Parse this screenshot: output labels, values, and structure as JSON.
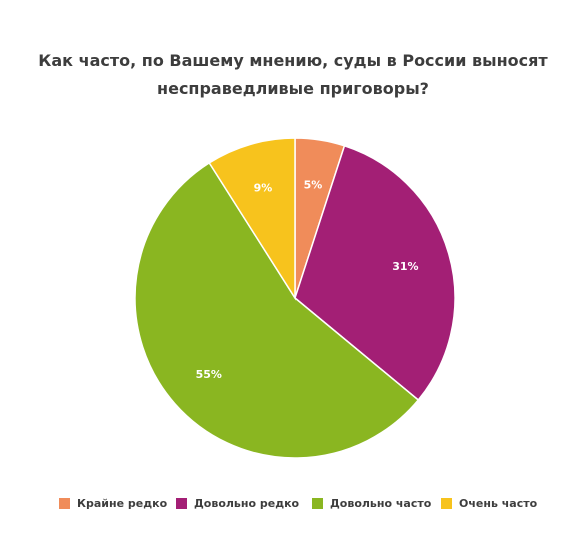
{
  "chart_data": {
    "type": "pie",
    "title_lines": [
      "Как часто, по Вашему мнению, суды в России выносят",
      "несправедливые приговоры?"
    ],
    "slices": [
      {
        "label": "Крайне редко",
        "value": 5,
        "value_label": "5%",
        "color": "#f08c5a"
      },
      {
        "label": "Довольно редко",
        "value": 31,
        "value_label": "31%",
        "color": "#a31f75"
      },
      {
        "label": "Довольно часто",
        "value": 55,
        "value_label": "55%",
        "color": "#8ab621"
      },
      {
        "label": "Очень часто",
        "value": 9,
        "value_label": "9%",
        "color": "#f7c31d"
      }
    ],
    "legend_position": "bottom"
  }
}
